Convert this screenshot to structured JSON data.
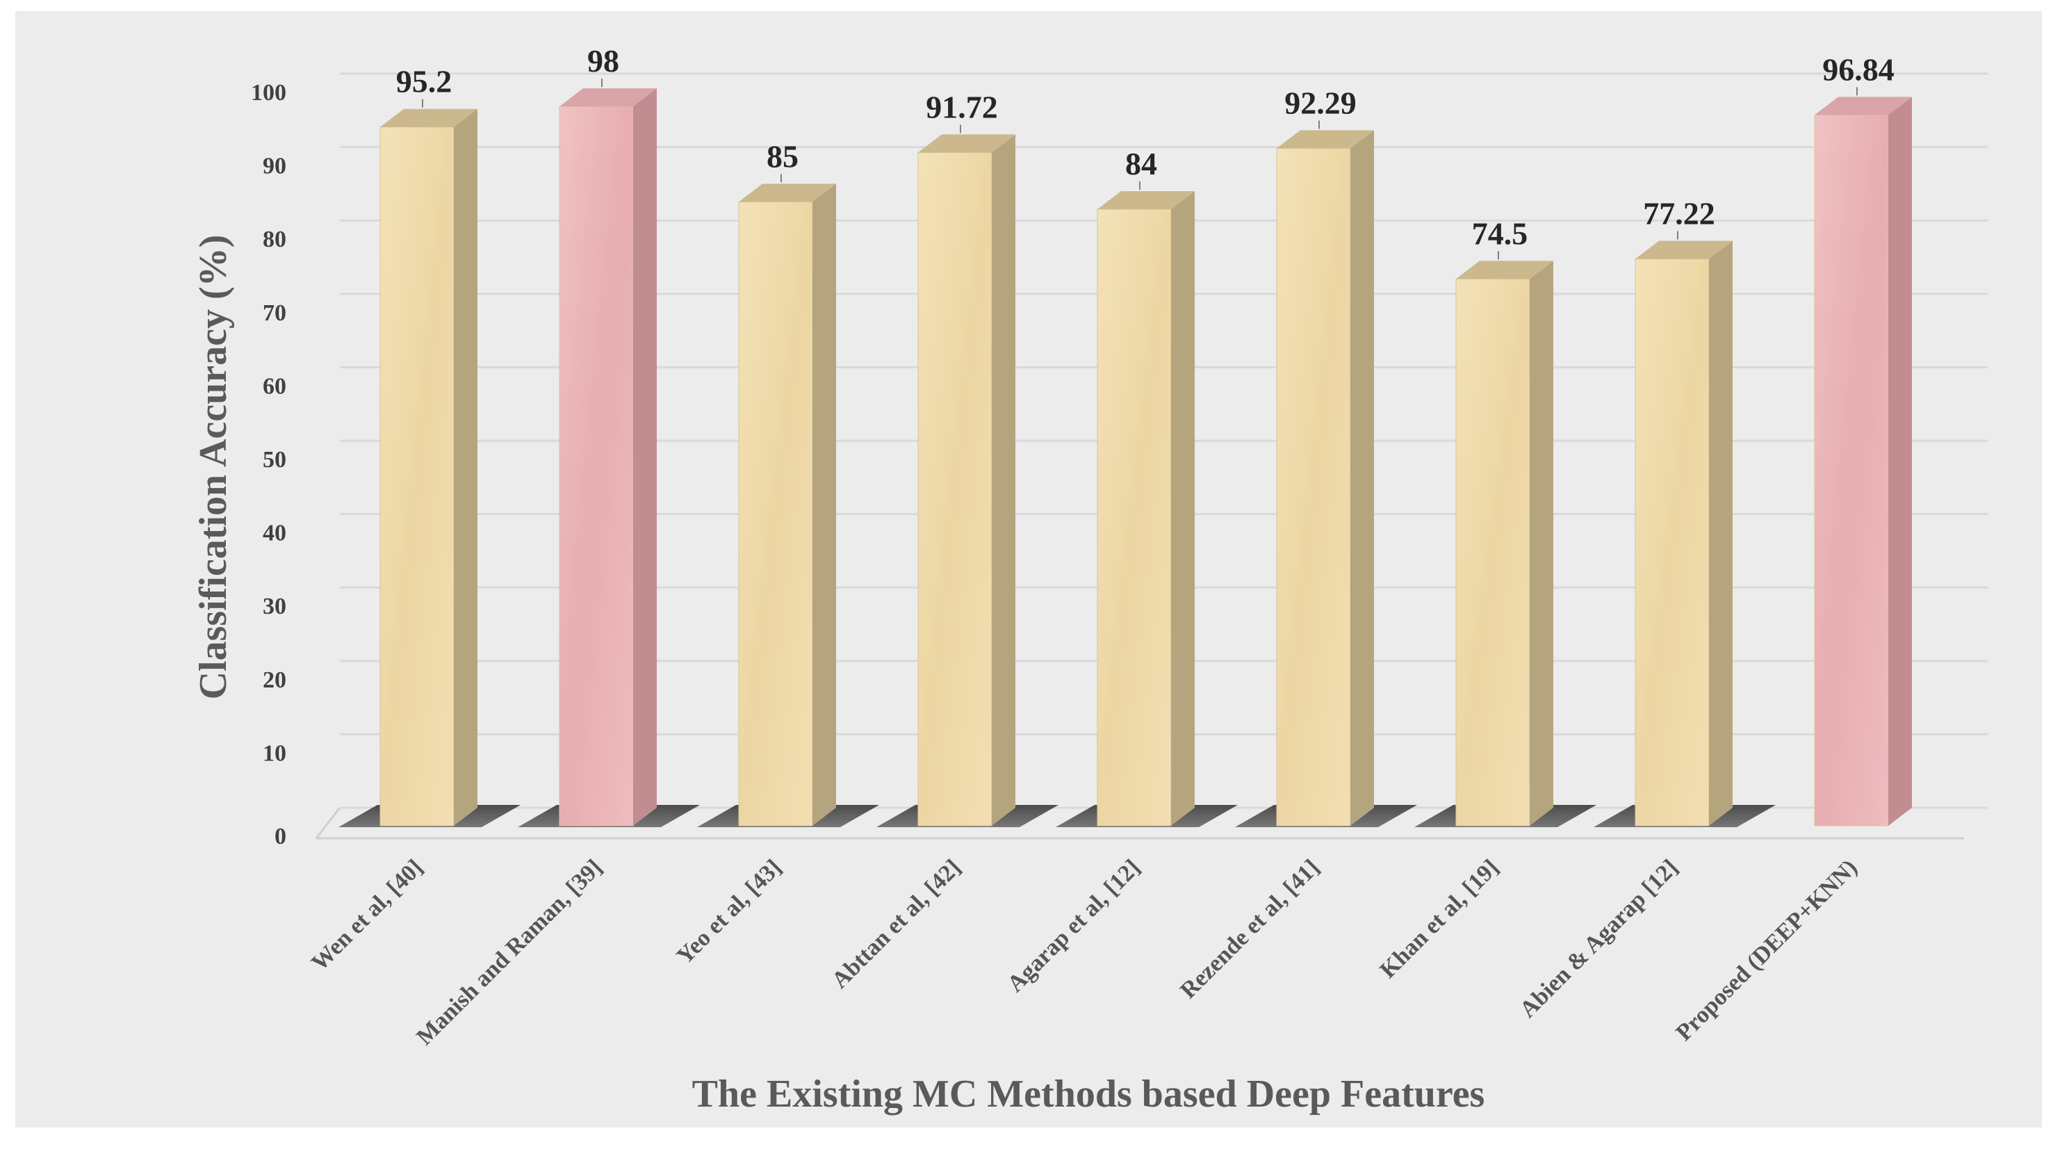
{
  "chart_data": {
    "type": "bar",
    "title": "",
    "xlabel": "The Existing MC Methods based Deep Features",
    "ylabel": "Classification Accuracy (%)",
    "ylim": [
      0,
      100
    ],
    "yticks": [
      0,
      10,
      20,
      30,
      40,
      50,
      60,
      70,
      80,
      90,
      100
    ],
    "grid": true,
    "categories": [
      "Wen et al, [40]",
      "Manish and Raman, [39]",
      "Yeo et al, [43]",
      "Abttan et al, [42]",
      "Agarap et al, [12]",
      "Rezende et al, [41]",
      "Khan et al, [19]",
      "Abien & Agarap [12]",
      "Proposed (DEEP+KNN)"
    ],
    "values": [
      95.2,
      98,
      85,
      91.72,
      84,
      92.29,
      74.5,
      77.22,
      96.84
    ],
    "value_labels": [
      "95.2",
      "98",
      "85",
      "91.72",
      "84",
      "92.29",
      "74.5",
      "77.22",
      "96.84"
    ],
    "bar_styles": [
      "beige",
      "pink",
      "beige",
      "beige",
      "beige",
      "beige",
      "beige",
      "beige",
      "pink"
    ],
    "colors": {
      "beige_front": "#f0dcae",
      "beige_side": "#b5a57f",
      "beige_top": "#cbb88d",
      "pink_front": "#edb9bb",
      "pink_side": "#c28d91",
      "pink_top": "#d9a5a8",
      "background": "#ececec",
      "grid": "#d9d9d9"
    }
  }
}
